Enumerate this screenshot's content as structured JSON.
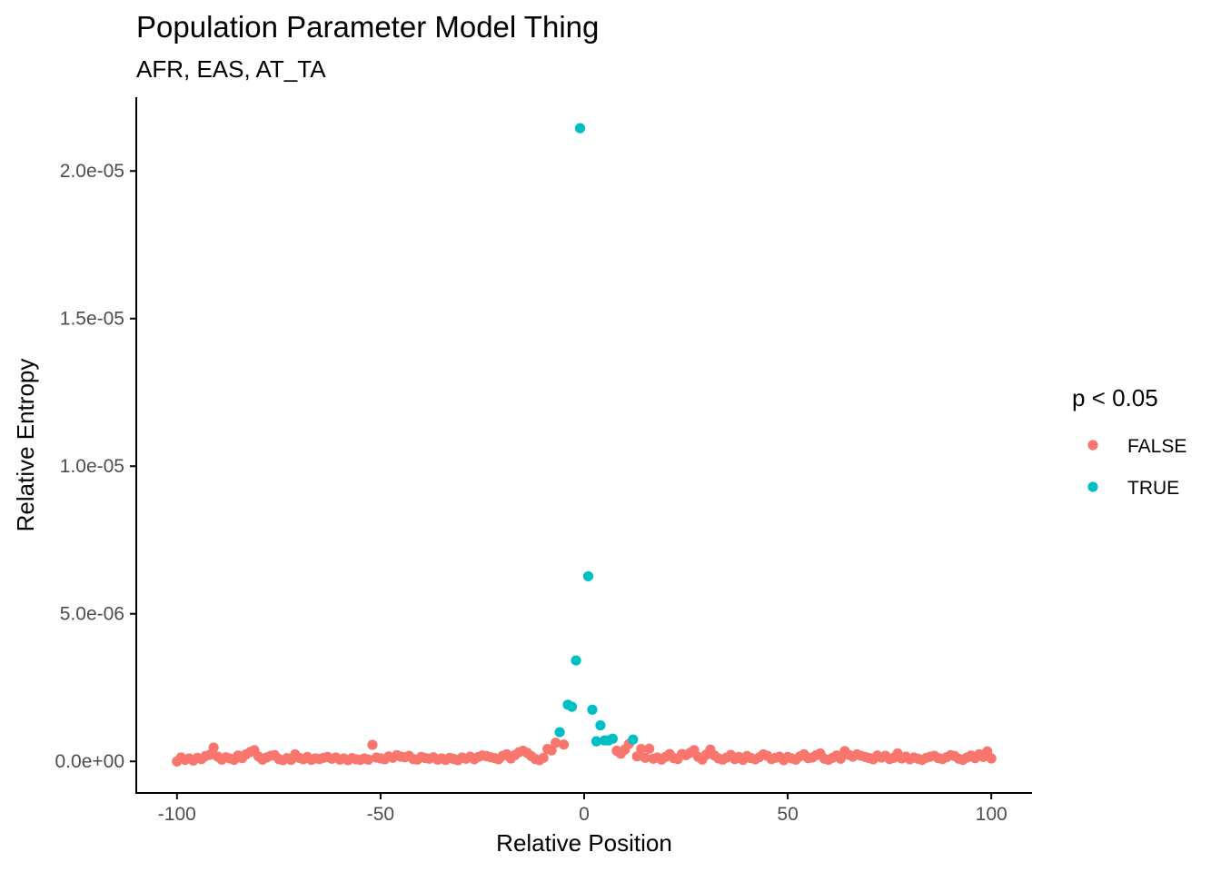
{
  "chart_data": {
    "type": "scatter",
    "title": "Population Parameter Model Thing",
    "subtitle": "AFR, EAS, AT_TA",
    "xlabel": "Relative Position",
    "ylabel": "Relative Entropy",
    "xlim": [
      -110,
      110
    ],
    "ylim": [
      -1.07e-06,
      2.25e-05
    ],
    "x_ticks": [
      -100,
      -50,
      0,
      50,
      100
    ],
    "x_tick_labels": [
      "-100",
      "-50",
      "0",
      "50",
      "100"
    ],
    "y_ticks": [
      0,
      5e-06,
      1e-05,
      1.5e-05,
      2e-05
    ],
    "y_tick_labels": [
      "0.0e+00",
      "5.0e-06",
      "1.0e-05",
      "1.5e-05",
      "2.0e-05"
    ],
    "grid": false,
    "legend": {
      "title": "p < 0.05",
      "position": "right",
      "entries": [
        {
          "label": "FALSE",
          "color": "#F8766D"
        },
        {
          "label": "TRUE",
          "color": "#00BFC4"
        }
      ]
    },
    "series": [
      {
        "name": "FALSE",
        "color": "#F8766D",
        "points": [
          [
            -100,
            0.0
          ],
          [
            -99,
            1.3e-07
          ],
          [
            -98,
            5e-08
          ],
          [
            -97,
            1e-07
          ],
          [
            -96,
            3e-08
          ],
          [
            -95,
            1.2e-07
          ],
          [
            -94,
            8e-08
          ],
          [
            -93,
            1.8e-07
          ],
          [
            -92,
            2.2e-07
          ],
          [
            -91,
            4.7e-07
          ],
          [
            -90,
            1.6e-07
          ],
          [
            -89,
            6e-08
          ],
          [
            -88,
            1.4e-07
          ],
          [
            -87,
            1e-07
          ],
          [
            -86,
            5e-08
          ],
          [
            -85,
            2e-07
          ],
          [
            -84,
            1.1e-07
          ],
          [
            -83,
            2.4e-07
          ],
          [
            -82,
            3.2e-07
          ],
          [
            -81,
            3.8e-07
          ],
          [
            -80,
            1.7e-07
          ],
          [
            -79,
            6e-08
          ],
          [
            -78,
            1.3e-07
          ],
          [
            -77,
            1.9e-07
          ],
          [
            -76,
            2.1e-07
          ],
          [
            -75,
            8e-08
          ],
          [
            -74,
            4e-08
          ],
          [
            -73,
            1.1e-07
          ],
          [
            -72,
            5e-08
          ],
          [
            -71,
            2.4e-07
          ],
          [
            -70,
            1.2e-07
          ],
          [
            -69,
            7e-08
          ],
          [
            -68,
            1.5e-07
          ],
          [
            -67,
            5e-08
          ],
          [
            -66,
            1e-07
          ],
          [
            -65,
            8e-08
          ],
          [
            -64,
            1.2e-07
          ],
          [
            -63,
            1.5e-07
          ],
          [
            -62,
            9e-08
          ],
          [
            -61,
            1.3e-07
          ],
          [
            -60,
            6e-08
          ],
          [
            -59,
            1e-07
          ],
          [
            -58,
            4e-08
          ],
          [
            -57,
            1.1e-07
          ],
          [
            -56,
            7e-08
          ],
          [
            -55,
            5e-08
          ],
          [
            -54,
            1e-07
          ],
          [
            -53,
            6e-08
          ],
          [
            -52,
            5.6e-07
          ],
          [
            -51,
            1.3e-07
          ],
          [
            -50,
            1e-07
          ],
          [
            -49,
            7e-08
          ],
          [
            -48,
            1.7e-07
          ],
          [
            -47,
            1.2e-07
          ],
          [
            -46,
            2.1e-07
          ],
          [
            -45,
            1.6e-07
          ],
          [
            -44,
            1.4e-07
          ],
          [
            -43,
            1.9e-07
          ],
          [
            -42,
            8e-08
          ],
          [
            -41,
            6e-08
          ],
          [
            -40,
            1.5e-07
          ],
          [
            -39,
            1.1e-07
          ],
          [
            -38,
            9e-08
          ],
          [
            -37,
            1.4e-07
          ],
          [
            -36,
            6e-08
          ],
          [
            -35,
            1e-07
          ],
          [
            -34,
            5e-08
          ],
          [
            -33,
            1.2e-07
          ],
          [
            -32,
            8e-08
          ],
          [
            -31,
            4e-08
          ],
          [
            -30,
            1.3e-07
          ],
          [
            -29,
            9e-08
          ],
          [
            -28,
            1.6e-07
          ],
          [
            -27,
            7e-08
          ],
          [
            -26,
            1.5e-07
          ],
          [
            -25,
            2e-07
          ],
          [
            -24,
            1.8e-07
          ],
          [
            -23,
            1.4e-07
          ],
          [
            -22,
            1.1e-07
          ],
          [
            -21,
            7e-08
          ],
          [
            -20,
            1.9e-07
          ],
          [
            -19,
            2.4e-07
          ],
          [
            -18,
            1e-07
          ],
          [
            -17,
            2.1e-07
          ],
          [
            -16,
            3.1e-07
          ],
          [
            -15,
            3.6e-07
          ],
          [
            -14,
            2.9e-07
          ],
          [
            -13,
            1.8e-07
          ],
          [
            -12,
            8e-08
          ],
          [
            -11,
            4e-08
          ],
          [
            -10,
            1.2e-07
          ],
          [
            -9,
            4.2e-07
          ],
          [
            -8,
            3.7e-07
          ],
          [
            -7,
            6.3e-07
          ],
          [
            -5,
            5.7e-07
          ],
          [
            8,
            3.6e-07
          ],
          [
            9,
            2.6e-07
          ],
          [
            10,
            4e-07
          ],
          [
            11,
            5.9e-07
          ],
          [
            13,
            1.7e-07
          ],
          [
            14,
            4.2e-07
          ],
          [
            15,
            1.2e-07
          ],
          [
            16,
            4.3e-07
          ],
          [
            17,
            9e-08
          ],
          [
            18,
            1.3e-07
          ],
          [
            19,
            6e-08
          ],
          [
            20,
            1.5e-07
          ],
          [
            21,
            2.5e-07
          ],
          [
            22,
            1.1e-07
          ],
          [
            23,
            8e-08
          ],
          [
            24,
            2.5e-07
          ],
          [
            25,
            2.1e-07
          ],
          [
            26,
            2.9e-07
          ],
          [
            27,
            3.8e-07
          ],
          [
            28,
            1.5e-07
          ],
          [
            29,
            6e-08
          ],
          [
            30,
            2.3e-07
          ],
          [
            31,
            4e-07
          ],
          [
            32,
            2e-07
          ],
          [
            33,
            1e-07
          ],
          [
            34,
            6e-08
          ],
          [
            35,
            1.3e-07
          ],
          [
            36,
            2.2e-07
          ],
          [
            37,
            8e-08
          ],
          [
            38,
            1.5e-07
          ],
          [
            39,
            5e-08
          ],
          [
            40,
            1.8e-07
          ],
          [
            41,
            1.1e-07
          ],
          [
            42,
            7e-08
          ],
          [
            43,
            1.4e-07
          ],
          [
            44,
            2.4e-07
          ],
          [
            45,
            1.9e-07
          ],
          [
            46,
            8e-08
          ],
          [
            47,
            1.2e-07
          ],
          [
            48,
            1.6e-07
          ],
          [
            49,
            4e-08
          ],
          [
            50,
            1.5e-07
          ],
          [
            51,
            1e-07
          ],
          [
            52,
            6e-08
          ],
          [
            53,
            1.7e-07
          ],
          [
            54,
            2.4e-07
          ],
          [
            55,
            1.1e-07
          ],
          [
            56,
            1.3e-07
          ],
          [
            57,
            2.1e-07
          ],
          [
            58,
            2.7e-07
          ],
          [
            59,
            9e-08
          ],
          [
            60,
            5e-08
          ],
          [
            61,
            1.2e-07
          ],
          [
            62,
            2e-07
          ],
          [
            63,
            9e-08
          ],
          [
            64,
            3.5e-07
          ],
          [
            65,
            2.2e-07
          ],
          [
            66,
            1.6e-07
          ],
          [
            67,
            2.4e-07
          ],
          [
            68,
            1.9e-07
          ],
          [
            69,
            1.5e-07
          ],
          [
            70,
            1.1e-07
          ],
          [
            71,
            7e-08
          ],
          [
            72,
            2e-07
          ],
          [
            73,
            1.3e-07
          ],
          [
            74,
            1.9e-07
          ],
          [
            75,
            8e-08
          ],
          [
            76,
            1.2e-07
          ],
          [
            77,
            2.7e-07
          ],
          [
            78,
            1e-07
          ],
          [
            79,
            1.6e-07
          ],
          [
            80,
            7e-08
          ],
          [
            81,
            1.3e-07
          ],
          [
            82,
            9e-08
          ],
          [
            83,
            5e-08
          ],
          [
            84,
            1.2e-07
          ],
          [
            85,
            1.6e-07
          ],
          [
            86,
            1.9e-07
          ],
          [
            87,
            1.1e-07
          ],
          [
            88,
            8e-08
          ],
          [
            89,
            1.4e-07
          ],
          [
            90,
            2.1e-07
          ],
          [
            91,
            1.8e-07
          ],
          [
            92,
            9e-08
          ],
          [
            93,
            5e-08
          ],
          [
            94,
            1.3e-07
          ],
          [
            95,
            2e-07
          ],
          [
            96,
            1.1e-07
          ],
          [
            97,
            2.4e-07
          ],
          [
            98,
            1.5e-07
          ],
          [
            99,
            3.4e-07
          ],
          [
            100,
            1e-07
          ]
        ]
      },
      {
        "name": "TRUE",
        "color": "#00BFC4",
        "points": [
          [
            -6,
            9.9e-07
          ],
          [
            -4,
            1.92e-06
          ],
          [
            -3,
            1.85e-06
          ],
          [
            -2,
            3.42e-06
          ],
          [
            -1,
            2.145e-05
          ],
          [
            1,
            6.27e-06
          ],
          [
            2,
            1.75e-06
          ],
          [
            3,
            6.8e-07
          ],
          [
            4,
            1.22e-06
          ],
          [
            5,
            7.1e-07
          ],
          [
            6,
            7.1e-07
          ],
          [
            7,
            7.7e-07
          ],
          [
            12,
            7.4e-07
          ]
        ]
      }
    ]
  }
}
